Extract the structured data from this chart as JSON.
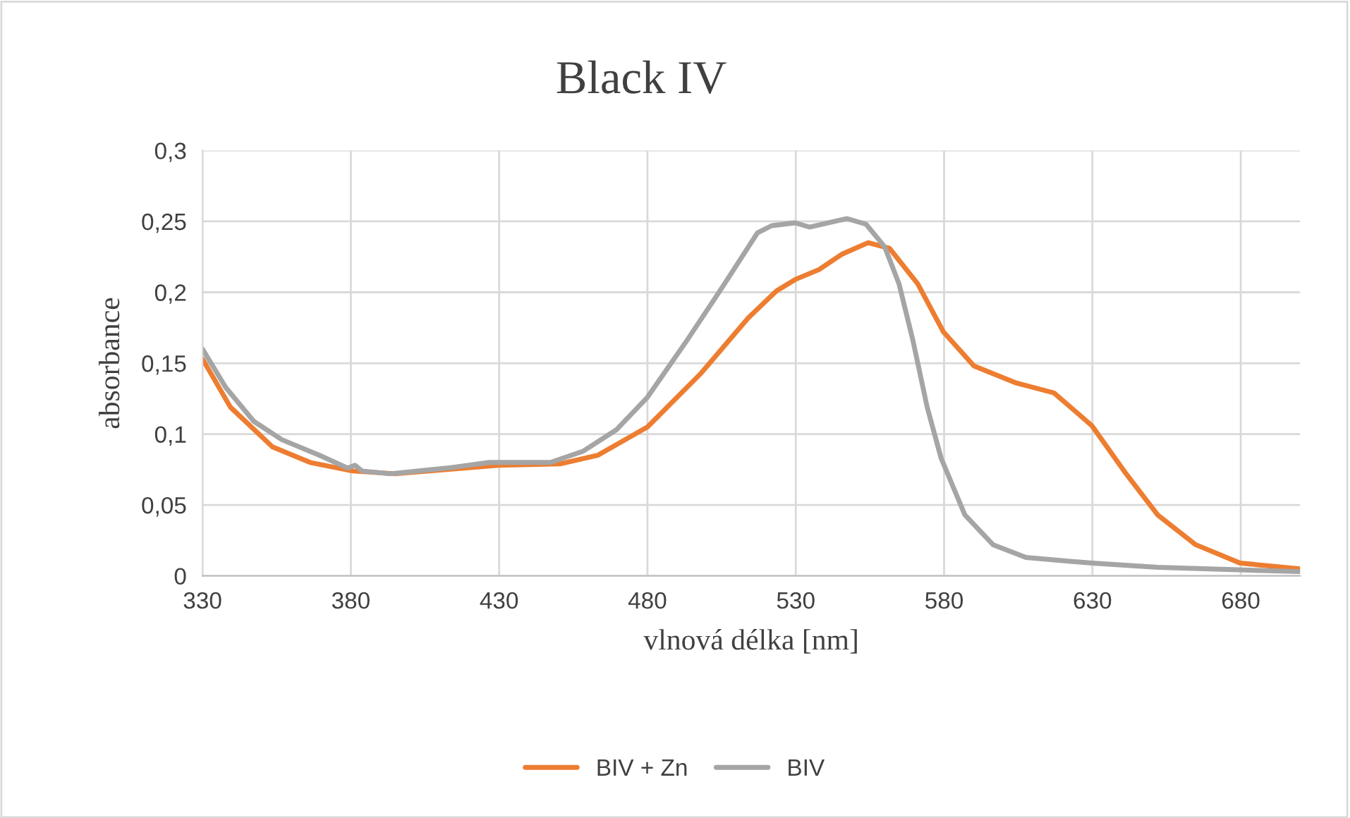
{
  "chart_data": {
    "type": "line",
    "title": "Black IV",
    "xlabel": "vlnová délka [nm]",
    "ylabel": "absorbance",
    "xlim": [
      330,
      700
    ],
    "xticks": [
      330,
      380,
      430,
      480,
      530,
      580,
      630,
      680
    ],
    "ylim": [
      0,
      0.3
    ],
    "yticks": [
      0,
      {
        "value": 0.05,
        "label": "0,05"
      },
      {
        "value": 0.1,
        "label": "0,1"
      },
      {
        "value": 0.15,
        "label": "0,15"
      },
      {
        "value": 0.2,
        "label": "0,2"
      },
      {
        "value": 0.25,
        "label": "0,25"
      },
      {
        "value": 0.3,
        "label": "0,3"
      }
    ],
    "grid": true,
    "legend": "bottom",
    "marker": "none",
    "line_style": "solid",
    "series": [
      {
        "name": "BIV + Zn",
        "color": "#ed7d31",
        "x": [
          330,
          339.4,
          353.6,
          366.3,
          380.6,
          394.9,
          412.4,
          429.8,
          450.5,
          463.2,
          480,
          498.1,
          514,
          523.5,
          529.8,
          537.8,
          545.7,
          554.4,
          561.6,
          571.1,
          579.8,
          590.1,
          604.4,
          617.1,
          629.8,
          641,
          652,
          664.8,
          679.8,
          700
        ],
        "values": [
          0.153,
          0.119,
          0.091,
          0.08,
          0.074,
          0.072,
          0.075,
          0.078,
          0.079,
          0.085,
          0.105,
          0.143,
          0.182,
          0.201,
          0.209,
          0.216,
          0.227,
          0.235,
          0.231,
          0.206,
          0.172,
          0.148,
          0.136,
          0.129,
          0.106,
          0.073,
          0.043,
          0.022,
          0.009,
          0.005
        ]
      },
      {
        "name": "BIV",
        "color": "#a5a5a5",
        "x": [
          330,
          337.8,
          347.3,
          356.8,
          369.5,
          379,
          381.4,
          383.8,
          393.3,
          412.4,
          426.7,
          447.3,
          458.4,
          469.5,
          480,
          493.3,
          506,
          517.1,
          521.9,
          529.8,
          534.6,
          547.3,
          553.7,
          560,
          564.8,
          569.5,
          574.3,
          579,
          587,
          596.5,
          607.6,
          629.8,
          652,
          700
        ],
        "values": [
          0.16,
          0.133,
          0.109,
          0.096,
          0.085,
          0.076,
          0.078,
          0.074,
          0.072,
          0.076,
          0.08,
          0.08,
          0.088,
          0.103,
          0.126,
          0.166,
          0.206,
          0.242,
          0.247,
          0.249,
          0.246,
          0.252,
          0.248,
          0.232,
          0.206,
          0.166,
          0.119,
          0.083,
          0.043,
          0.022,
          0.013,
          0.009,
          0.006,
          0.003
        ]
      }
    ]
  }
}
